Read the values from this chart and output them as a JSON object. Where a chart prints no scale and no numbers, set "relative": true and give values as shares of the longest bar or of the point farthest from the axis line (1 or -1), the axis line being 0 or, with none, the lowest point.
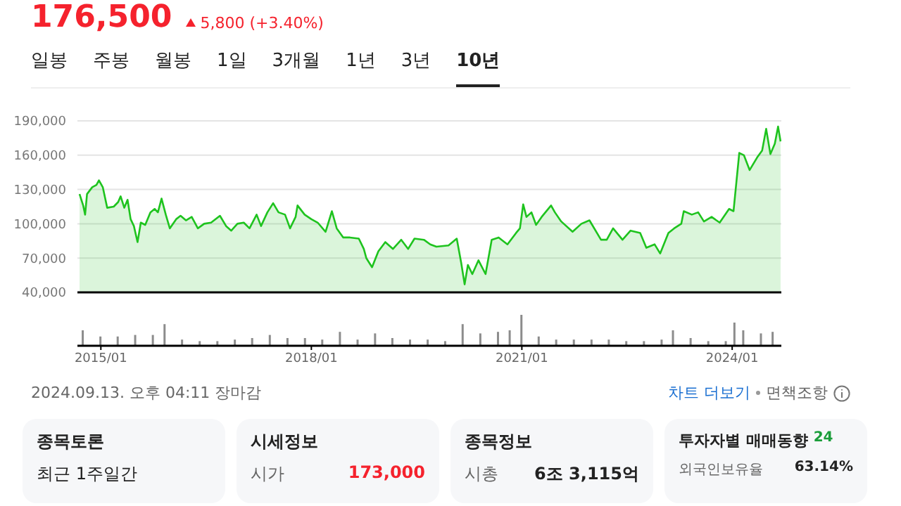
{
  "chart_data": [
    {
      "type": "area",
      "annotations": [
        "176,500",
        "5,800 (+3.40%)",
        "일봉",
        "주봉",
        "월봉",
        "1일",
        "3개월",
        "1년",
        "3년",
        "10년",
        "2024.09.13. 오후 04:11 장마감",
        "차트 더보기",
        "면책조항",
        "종목토론",
        "최근 1주일간",
        "시세정보",
        "시가",
        "173,000",
        "종목정보",
        "시총",
        "6조 3,115억",
        "투자자별 매매동향",
        "24",
        "외국인보유율",
        "63.14%"
      ],
      "x": [
        "2014-09-12",
        "2014-10-01",
        "2014-10-11",
        "2014-10-21",
        "2014-11-17",
        "2014-12-09",
        "2014-12-22",
        "2015-01-11",
        "2015-02-03",
        "2015-03-09",
        "2015-04-01",
        "2015-04-14",
        "2015-05-03",
        "2015-05-20",
        "2015-06-05",
        "2015-06-22",
        "2015-07-11",
        "2015-07-28",
        "2015-08-20",
        "2015-09-16",
        "2015-10-08",
        "2015-10-25",
        "2015-11-13",
        "2015-12-05",
        "2015-12-26",
        "2016-01-28",
        "2016-02-20",
        "2016-03-19",
        "2016-04-18",
        "2016-05-20",
        "2016-06-22",
        "2016-07-28",
        "2016-09-12",
        "2016-10-14",
        "2016-11-10",
        "2016-12-12",
        "2017-01-14",
        "2017-02-13",
        "2017-03-22",
        "2017-04-14",
        "2017-05-17",
        "2017-06-16",
        "2017-07-14",
        "2017-08-17",
        "2017-09-12",
        "2017-10-11",
        "2017-10-21",
        "2017-11-27",
        "2018-01-01",
        "2018-02-03",
        "2018-03-16",
        "2018-04-18",
        "2018-05-13",
        "2018-06-16",
        "2018-07-21",
        "2018-09-05",
        "2018-10-01",
        "2018-10-14",
        "2018-11-13",
        "2018-12-16",
        "2019-01-21",
        "2019-03-02",
        "2019-04-14",
        "2019-05-20",
        "2019-06-22",
        "2019-08-10",
        "2019-09-12",
        "2019-10-14",
        "2019-12-16",
        "2020-01-28",
        "2020-02-20",
        "2020-03-09",
        "2020-03-26",
        "2020-04-18",
        "2020-05-20",
        "2020-06-26",
        "2020-07-28",
        "2020-09-02",
        "2020-10-18",
        "2020-12-02",
        "2020-12-22",
        "2021-01-08",
        "2021-01-25",
        "2021-02-20",
        "2021-03-16",
        "2021-04-14",
        "2021-06-02",
        "2021-06-22",
        "2021-07-25",
        "2021-09-22",
        "2021-11-07",
        "2021-12-19",
        "2022-02-17",
        "2022-03-19",
        "2022-04-21",
        "2022-06-09",
        "2022-07-21",
        "2022-09-09",
        "2022-10-11",
        "2022-11-23",
        "2022-12-22",
        "2023-02-03",
        "2023-03-05",
        "2023-04-11",
        "2023-04-24",
        "2023-06-05",
        "2023-07-08",
        "2023-08-07",
        "2023-09-16",
        "2023-10-28",
        "2023-12-16",
        "2024-01-08",
        "2024-02-07",
        "2024-03-02",
        "2024-04-01",
        "2024-05-10",
        "2024-06-05",
        "2024-06-26",
        "2024-07-18",
        "2024-08-10",
        "2024-08-27",
        "2024-09-09"
      ],
      "series": [
        {
          "color": "#1ec31e",
          "values": [
            126000,
            116000,
            108000,
            126000,
            132000,
            134000,
            138000,
            132000,
            114000,
            115000,
            119000,
            124000,
            114000,
            121000,
            104000,
            98000,
            84000,
            101000,
            99000,
            110000,
            113000,
            110000,
            122000,
            108000,
            96000,
            104000,
            107000,
            103000,
            106000,
            96000,
            100000,
            101000,
            107000,
            98000,
            94000,
            100000,
            101000,
            96000,
            108000,
            98000,
            110000,
            118000,
            110000,
            108000,
            96000,
            106000,
            116000,
            108000,
            104000,
            101000,
            93000,
            111000,
            96000,
            88000,
            88000,
            87000,
            78000,
            70000,
            62000,
            76000,
            84000,
            78000,
            86000,
            78000,
            87000,
            86000,
            82000,
            80000,
            81000,
            87000,
            66000,
            47000,
            64000,
            56000,
            68000,
            56000,
            86000,
            88000,
            82000,
            92000,
            96000,
            117000,
            106000,
            110000,
            99000,
            106000,
            116000,
            110000,
            102000,
            93000,
            100000,
            103000,
            86000,
            86000,
            96000,
            86000,
            94000,
            92000,
            79000,
            82000,
            74000,
            92000,
            96000,
            100000,
            111000,
            108000,
            110000,
            102000,
            106000,
            101000,
            113000,
            111000,
            162000,
            160000,
            147000,
            158000,
            164000,
            183000,
            161000,
            170000,
            185000,
            172000
          ]
        }
      ],
      "xlim": [
        "2014-09-01",
        "2024-09-13"
      ],
      "xticks": [
        {
          "value": "2015-01-01",
          "label": null
        },
        {
          "value": "2018-01-01",
          "label": null
        },
        {
          "value": "2021-01-01",
          "label": null
        },
        {
          "value": "2024-01-01",
          "label": null
        }
      ],
      "ylim": [
        40000,
        190000
      ],
      "yticks": [
        {
          "value": 40000,
          "label": "40,000"
        },
        {
          "value": 70000,
          "label": "70,000"
        },
        {
          "value": 100000,
          "label": "100,000"
        },
        {
          "value": 130000,
          "label": "130,000"
        },
        {
          "value": 160000,
          "label": "160,000"
        },
        {
          "value": 190000,
          "label": "190,000"
        }
      ],
      "grid": true,
      "tick_labels": "y"
    },
    {
      "type": "bar",
      "relative": true,
      "x": [
        "2014-10-01",
        "2015-01-01",
        "2015-04-01",
        "2015-07-01",
        "2015-10-01",
        "2015-12-01",
        "2016-03-01",
        "2016-06-01",
        "2016-09-01",
        "2016-12-01",
        "2017-03-01",
        "2017-06-01",
        "2017-09-01",
        "2017-12-01",
        "2018-03-01",
        "2018-06-01",
        "2018-09-01",
        "2018-12-01",
        "2019-03-01",
        "2019-06-01",
        "2019-09-01",
        "2019-12-01",
        "2020-03-01",
        "2020-06-01",
        "2020-09-01",
        "2020-11-01",
        "2021-01-01",
        "2021-04-01",
        "2021-07-01",
        "2021-10-01",
        "2022-01-01",
        "2022-04-01",
        "2022-07-01",
        "2022-10-01",
        "2023-01-01",
        "2023-03-01",
        "2023-06-01",
        "2023-09-01",
        "2023-12-01",
        "2024-01-15",
        "2024-03-01",
        "2024-06-01",
        "2024-08-01"
      ],
      "series": [
        {
          "color": "#8c8c8c",
          "values": [
            0.5,
            0.3,
            0.3,
            0.35,
            0.35,
            0.7,
            0.2,
            0.15,
            0.15,
            0.2,
            0.25,
            0.35,
            0.25,
            0.25,
            0.2,
            0.45,
            0.2,
            0.4,
            0.25,
            0.2,
            0.2,
            0.15,
            0.7,
            0.4,
            0.45,
            0.5,
            1,
            0.3,
            0.2,
            0.2,
            0.2,
            0.2,
            0.15,
            0.15,
            0.2,
            0.5,
            0.25,
            0.15,
            0.15,
            0.75,
            0.5,
            0.4,
            0.45
          ]
        }
      ],
      "xlim": [
        "2014-09-01",
        "2024-09-13"
      ],
      "xticks": [
        {
          "value": "2015-01-01",
          "label": "2015/01"
        },
        {
          "value": "2018-01-01",
          "label": "2018/01"
        },
        {
          "value": "2021-01-01",
          "label": "2021/01"
        },
        {
          "value": "2024-01-01",
          "label": "2024/01"
        }
      ],
      "tick_labels": "x"
    }
  ]
}
